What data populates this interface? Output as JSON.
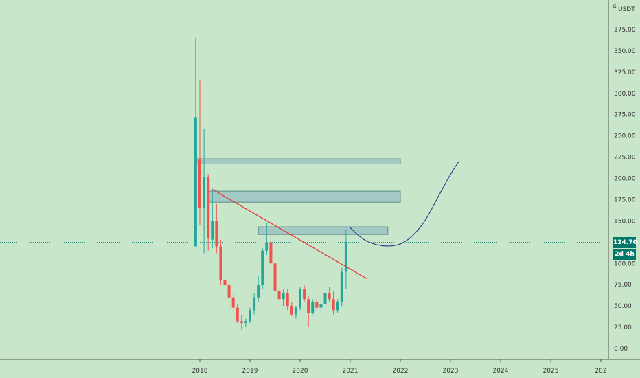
{
  "chart_data": {
    "type": "candlestick",
    "currency": "USDT",
    "top_tick": "4",
    "y_ticks": [
      "375.00",
      "350.00",
      "325.00",
      "300.00",
      "275.00",
      "250.00",
      "225.00",
      "200.00",
      "175.00",
      "150.00",
      "100.00",
      "75.00",
      "50.00",
      "25.00",
      "0.00"
    ],
    "x_ticks": [
      "2018",
      "2019",
      "2020",
      "2021",
      "2022",
      "2023",
      "2024",
      "2025",
      "202"
    ],
    "ylim": [
      -10,
      405
    ],
    "current_price": "124.70",
    "countdown": "2d 4h",
    "colors": {
      "background": "#c8e6c9",
      "up": "#26a69a",
      "down": "#ef5350",
      "zone": "#a3c9c4",
      "zone_border": "#5b8a88",
      "trendline": "#e53935",
      "projection": "#283593",
      "price_tag": "#00796b"
    },
    "candles": [
      {
        "t": "2017-12",
        "o": 120,
        "h": 365,
        "l": 120,
        "c": 272
      },
      {
        "t": "2018-01",
        "o": 222,
        "h": 315,
        "l": 145,
        "c": 165
      },
      {
        "t": "2018-02",
        "o": 165,
        "h": 258,
        "l": 112,
        "c": 202
      },
      {
        "t": "2018-03",
        "o": 202,
        "h": 205,
        "l": 115,
        "c": 130
      },
      {
        "t": "2018-04",
        "o": 128,
        "h": 188,
        "l": 118,
        "c": 150
      },
      {
        "t": "2018-05",
        "o": 150,
        "h": 170,
        "l": 112,
        "c": 120
      },
      {
        "t": "2018-06",
        "o": 120,
        "h": 128,
        "l": 75,
        "c": 80
      },
      {
        "t": "2018-07",
        "o": 80,
        "h": 82,
        "l": 55,
        "c": 75
      },
      {
        "t": "2018-08",
        "o": 75,
        "h": 78,
        "l": 40,
        "c": 60
      },
      {
        "t": "2018-09",
        "o": 60,
        "h": 65,
        "l": 42,
        "c": 48
      },
      {
        "t": "2018-10",
        "o": 48,
        "h": 52,
        "l": 30,
        "c": 32
      },
      {
        "t": "2018-11",
        "o": 32,
        "h": 40,
        "l": 22,
        "c": 30
      },
      {
        "t": "2018-12",
        "o": 30,
        "h": 35,
        "l": 25,
        "c": 32
      },
      {
        "t": "2019-01",
        "o": 32,
        "h": 48,
        "l": 30,
        "c": 45
      },
      {
        "t": "2019-02",
        "o": 45,
        "h": 65,
        "l": 40,
        "c": 60
      },
      {
        "t": "2019-03",
        "o": 60,
        "h": 85,
        "l": 55,
        "c": 75
      },
      {
        "t": "2019-04",
        "o": 75,
        "h": 118,
        "l": 70,
        "c": 115
      },
      {
        "t": "2019-05",
        "o": 115,
        "h": 148,
        "l": 110,
        "c": 125
      },
      {
        "t": "2019-06",
        "o": 125,
        "h": 145,
        "l": 95,
        "c": 100
      },
      {
        "t": "2019-07",
        "o": 100,
        "h": 110,
        "l": 65,
        "c": 68
      },
      {
        "t": "2019-08",
        "o": 68,
        "h": 72,
        "l": 55,
        "c": 58
      },
      {
        "t": "2019-09",
        "o": 58,
        "h": 70,
        "l": 50,
        "c": 65
      },
      {
        "t": "2019-10",
        "o": 65,
        "h": 70,
        "l": 45,
        "c": 50
      },
      {
        "t": "2019-11",
        "o": 50,
        "h": 55,
        "l": 38,
        "c": 40
      },
      {
        "t": "2019-12",
        "o": 40,
        "h": 50,
        "l": 35,
        "c": 48
      },
      {
        "t": "2020-01",
        "o": 48,
        "h": 72,
        "l": 45,
        "c": 70
      },
      {
        "t": "2020-02",
        "o": 70,
        "h": 75,
        "l": 55,
        "c": 58
      },
      {
        "t": "2020-03",
        "o": 58,
        "h": 62,
        "l": 25,
        "c": 42
      },
      {
        "t": "2020-04",
        "o": 42,
        "h": 58,
        "l": 40,
        "c": 55
      },
      {
        "t": "2020-05",
        "o": 55,
        "h": 60,
        "l": 45,
        "c": 48
      },
      {
        "t": "2020-06",
        "o": 48,
        "h": 55,
        "l": 42,
        "c": 52
      },
      {
        "t": "2020-07",
        "o": 52,
        "h": 68,
        "l": 50,
        "c": 65
      },
      {
        "t": "2020-08",
        "o": 65,
        "h": 72,
        "l": 55,
        "c": 58
      },
      {
        "t": "2020-09",
        "o": 58,
        "h": 68,
        "l": 40,
        "c": 45
      },
      {
        "t": "2020-10",
        "o": 45,
        "h": 58,
        "l": 42,
        "c": 55
      },
      {
        "t": "2020-11",
        "o": 55,
        "h": 95,
        "l": 50,
        "c": 90
      },
      {
        "t": "2020-12",
        "o": 90,
        "h": 140,
        "l": 70,
        "c": 125
      }
    ],
    "zones": [
      {
        "from": "2017-12",
        "to": "2022-01",
        "low": 217,
        "high": 223
      },
      {
        "from": "2018-03",
        "to": "2022-01",
        "low": 172,
        "high": 185
      },
      {
        "from": "2019-03",
        "to": "2021-10",
        "low": 134,
        "high": 143
      }
    ],
    "trendline": [
      {
        "t": "2018-04",
        "v": 187
      },
      {
        "t": "2021-05",
        "v": 82
      }
    ],
    "projection": [
      {
        "t": "2021-01",
        "v": 142
      },
      {
        "t": "2021-04",
        "v": 128
      },
      {
        "t": "2021-07",
        "v": 122
      },
      {
        "t": "2021-10",
        "v": 120
      },
      {
        "t": "2022-01",
        "v": 122
      },
      {
        "t": "2022-04",
        "v": 132
      },
      {
        "t": "2022-07",
        "v": 150
      },
      {
        "t": "2022-10",
        "v": 178
      },
      {
        "t": "2023-01",
        "v": 205
      },
      {
        "t": "2023-03",
        "v": 220
      }
    ]
  }
}
